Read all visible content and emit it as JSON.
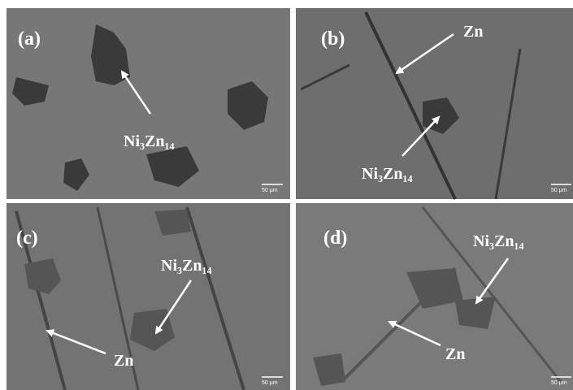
{
  "panels": [
    {
      "label": "(a)",
      "annotations": [
        "Ni₃Zn₁₄"
      ],
      "scale_bar": "50 μm"
    },
    {
      "label": "(b)",
      "annotations": [
        "Zn",
        "Ni₃Zn₁₄"
      ],
      "scale_bar": "50 μm"
    },
    {
      "label": "(c)",
      "annotations": [
        "Ni₃Zn₁₄",
        "Zn"
      ],
      "scale_bar": "50 μm"
    },
    {
      "label": "(d)",
      "annotations": [
        "Ni₃Zn₁₄",
        "Zn"
      ],
      "scale_bar": "50 μm"
    }
  ]
}
